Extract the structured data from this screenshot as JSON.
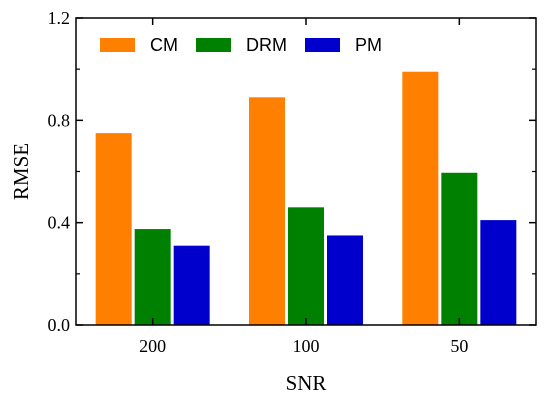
{
  "chart_data": {
    "type": "bar",
    "title": "",
    "xlabel": "SNR",
    "ylabel": "RMSE",
    "categories": [
      "200",
      "100",
      "50"
    ],
    "ylim": [
      0.0,
      1.2
    ],
    "yticks": [
      "0.0",
      "0.4",
      "0.8",
      "1.2"
    ],
    "grid": false,
    "legend_position": "top-left",
    "series": [
      {
        "name": "CM",
        "color": "#ff8000",
        "values": [
          0.75,
          0.89,
          0.99
        ]
      },
      {
        "name": "DRM",
        "color": "#008000",
        "values": [
          0.375,
          0.46,
          0.595
        ]
      },
      {
        "name": "PM",
        "color": "#0000cd",
        "values": [
          0.31,
          0.35,
          0.41
        ]
      }
    ]
  }
}
